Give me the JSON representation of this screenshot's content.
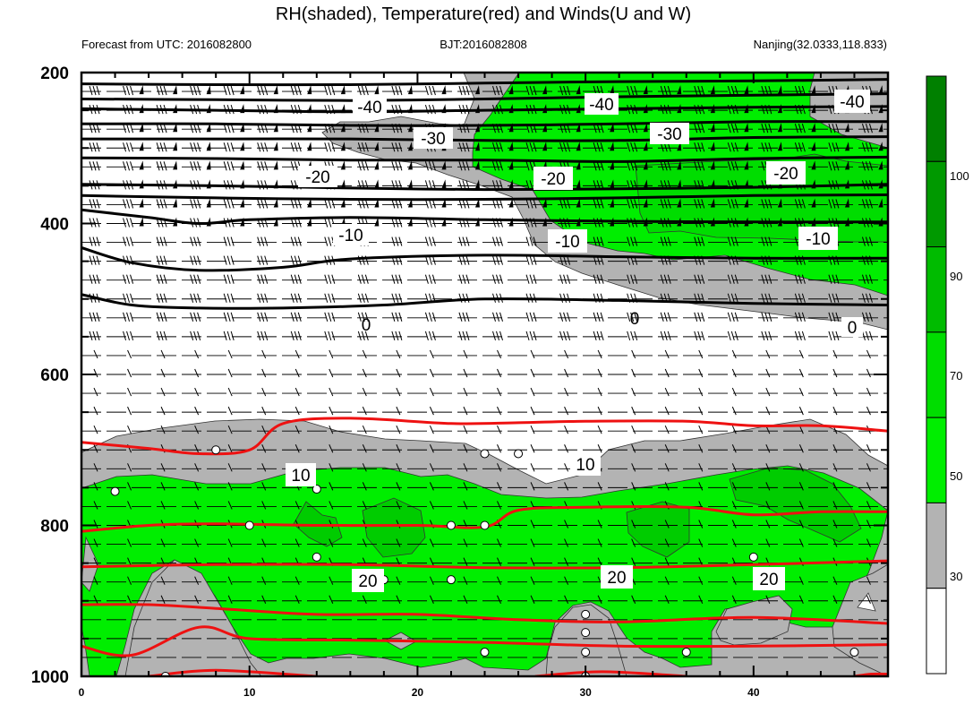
{
  "chart_data": {
    "type": "contour",
    "title": "RH(shaded), Temperature(red) and Winds(U and W)",
    "left_string": "Forecast from UTC: 2016082800",
    "center_string": "BJT:2016082808",
    "right_string": "Nanjing(32.0333,118.833)",
    "x_range": [
      0,
      48
    ],
    "x_ticks": [
      0,
      10,
      20,
      30,
      40
    ],
    "y_range": [
      200,
      1000
    ],
    "y_ticks": [
      200,
      400,
      600,
      800,
      1000
    ],
    "y_axis_reversed": true,
    "colorbar": {
      "levels": [
        30,
        50,
        70,
        90,
        100
      ],
      "labels": [
        "30",
        "50",
        "70",
        "90",
        "100"
      ],
      "colors": [
        "#ffffff",
        "#b3b3b3",
        "#00ee00",
        "#00dd00",
        "#00bb00",
        "#009900",
        "#008000"
      ]
    },
    "black_isotherm_labels": [
      "-40",
      "-40",
      "-40",
      "-30",
      "-30",
      "-20",
      "-20",
      "-20",
      "-10",
      "-10",
      "-10",
      "0",
      "0",
      "0"
    ],
    "red_isotherm_labels": [
      "10",
      "10",
      "20",
      "20",
      "20"
    ],
    "black_isotherms": [
      {
        "level": -40,
        "points": [
          [
            0,
            215
          ],
          [
            8,
            216
          ],
          [
            16,
            216
          ],
          [
            24,
            214
          ],
          [
            32,
            212
          ],
          [
            40,
            211
          ],
          [
            48,
            209
          ]
        ]
      },
      {
        "level": -40,
        "points": [
          [
            0,
            235
          ],
          [
            8,
            236
          ],
          [
            16,
            237
          ],
          [
            24,
            235
          ],
          [
            32,
            232
          ],
          [
            40,
            230
          ],
          [
            48,
            228
          ]
        ]
      },
      {
        "level": -40,
        "points": [
          [
            0,
            248
          ],
          [
            8,
            250
          ],
          [
            16,
            252
          ],
          [
            24,
            250
          ],
          [
            32,
            248
          ],
          [
            40,
            246
          ],
          [
            48,
            245
          ]
        ]
      },
      {
        "level": -30,
        "points": [
          [
            0,
            268
          ],
          [
            8,
            268
          ],
          [
            16,
            270
          ],
          [
            24,
            270
          ],
          [
            32,
            268
          ],
          [
            40,
            265
          ],
          [
            48,
            265
          ]
        ]
      },
      {
        "level": -30,
        "points": [
          [
            0,
            288
          ],
          [
            8,
            288
          ],
          [
            16,
            288
          ],
          [
            24,
            290
          ],
          [
            32,
            290
          ],
          [
            40,
            286
          ],
          [
            48,
            285
          ]
        ]
      },
      {
        "level": -30,
        "points": [
          [
            0,
            313
          ],
          [
            8,
            314
          ],
          [
            16,
            316
          ],
          [
            24,
            316
          ],
          [
            32,
            318
          ],
          [
            40,
            314
          ],
          [
            48,
            312
          ]
        ]
      },
      {
        "level": -20,
        "points": [
          [
            0,
            348
          ],
          [
            8,
            350
          ],
          [
            16,
            353
          ],
          [
            24,
            355
          ],
          [
            32,
            354
          ],
          [
            40,
            352
          ],
          [
            48,
            348
          ]
        ]
      },
      {
        "level": -20,
        "points": [
          [
            0,
            363
          ],
          [
            8,
            366
          ],
          [
            16,
            368
          ],
          [
            24,
            368
          ],
          [
            32,
            366
          ],
          [
            40,
            363
          ],
          [
            48,
            362
          ]
        ]
      },
      {
        "level": -20,
        "points": [
          [
            0,
            382
          ],
          [
            4,
            392
          ],
          [
            7,
            400
          ],
          [
            10,
            395
          ],
          [
            16,
            392
          ],
          [
            24,
            395
          ],
          [
            32,
            397
          ],
          [
            40,
            398
          ],
          [
            48,
            398
          ]
        ]
      },
      {
        "level": -10,
        "points": [
          [
            0,
            432
          ],
          [
            3,
            452
          ],
          [
            7,
            462
          ],
          [
            12,
            458
          ],
          [
            16,
            447
          ],
          [
            24,
            442
          ],
          [
            32,
            444
          ],
          [
            40,
            446
          ],
          [
            48,
            446
          ]
        ]
      },
      {
        "level": -10,
        "points": [
          [
            0,
            494
          ],
          [
            3,
            508
          ],
          [
            7,
            512
          ],
          [
            12,
            512
          ],
          [
            18,
            508
          ],
          [
            24,
            500
          ],
          [
            32,
            502
          ],
          [
            40,
            506
          ],
          [
            48,
            508
          ]
        ]
      }
    ],
    "red_isotherms": [
      {
        "level": 0,
        "points": [
          [
            0,
            690
          ],
          [
            4,
            698
          ],
          [
            7,
            705
          ],
          [
            10,
            700
          ],
          [
            12,
            665
          ],
          [
            16,
            658
          ],
          [
            22,
            665
          ],
          [
            26,
            664
          ],
          [
            30,
            662
          ],
          [
            36,
            662
          ],
          [
            40,
            668
          ],
          [
            44,
            668
          ],
          [
            48,
            675
          ]
        ]
      },
      {
        "level": 10,
        "points": [
          [
            0,
            808
          ],
          [
            4,
            800
          ],
          [
            8,
            798
          ],
          [
            14,
            800
          ],
          [
            20,
            800
          ],
          [
            24,
            802
          ],
          [
            26,
            780
          ],
          [
            30,
            776
          ],
          [
            36,
            776
          ],
          [
            40,
            786
          ],
          [
            44,
            782
          ],
          [
            48,
            782
          ]
        ]
      },
      {
        "level": 10,
        "points": [
          [
            0,
            855
          ],
          [
            8,
            852
          ],
          [
            16,
            852
          ],
          [
            24,
            856
          ],
          [
            32,
            856
          ],
          [
            40,
            852
          ],
          [
            48,
            847
          ]
        ]
      },
      {
        "level": 10,
        "points": [
          [
            0,
            905
          ],
          [
            4,
            905
          ],
          [
            8,
            910
          ],
          [
            14,
            918
          ],
          [
            20,
            918
          ],
          [
            26,
            925
          ],
          [
            32,
            928
          ],
          [
            40,
            922
          ],
          [
            48,
            930
          ]
        ]
      },
      {
        "level": 20,
        "points": [
          [
            0,
            960
          ],
          [
            3,
            972
          ],
          [
            7,
            935
          ],
          [
            10,
            950
          ],
          [
            16,
            952
          ],
          [
            24,
            955
          ],
          [
            32,
            960
          ],
          [
            40,
            960
          ],
          [
            48,
            958
          ]
        ]
      },
      {
        "level": 20,
        "points": [
          [
            4,
            1000
          ],
          [
            8,
            992
          ],
          [
            14,
            1000
          ]
        ]
      },
      {
        "level": 20,
        "points": [
          [
            27,
            1000
          ],
          [
            31,
            994
          ],
          [
            36,
            1000
          ]
        ]
      },
      {
        "level": 20,
        "points": [
          [
            46,
            1000
          ],
          [
            47,
            997
          ],
          [
            48,
            997
          ]
        ]
      }
    ]
  }
}
